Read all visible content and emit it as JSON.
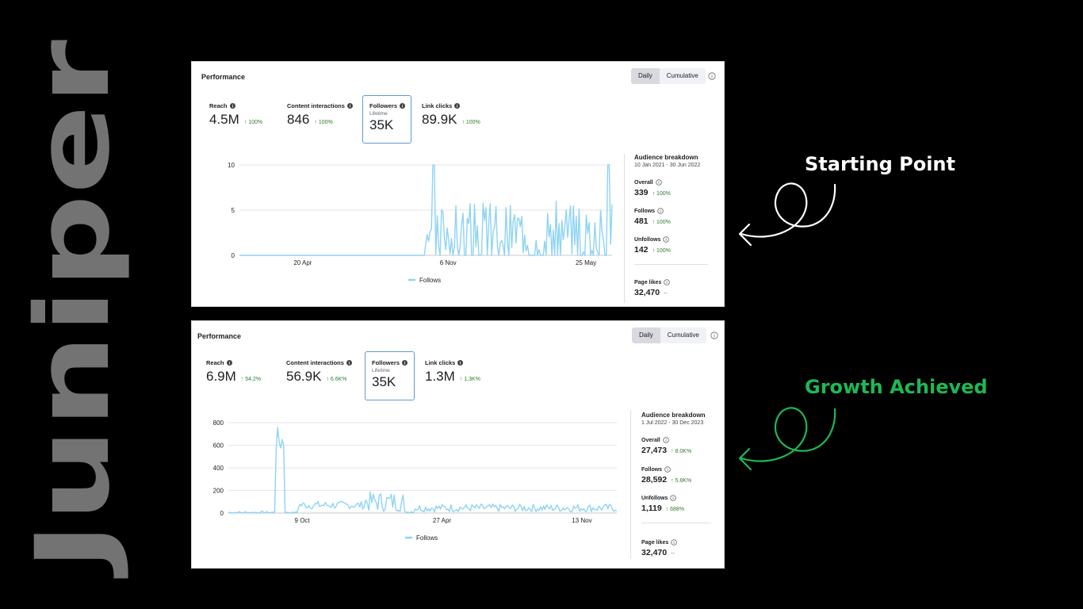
{
  "brand": {
    "text": "Juniper",
    "color": "#737373"
  },
  "panels": [
    {
      "title": "Performance",
      "toggle": [
        "Daily",
        "Cumulative"
      ],
      "metrics": [
        {
          "label": "Reach",
          "value": "4.5M",
          "change": "↑ 100%"
        },
        {
          "label": "Content interactions",
          "value": "846",
          "change": "↑ 100%"
        },
        {
          "label": "Followers",
          "sub": "Lifetime",
          "value": "35K",
          "change": ""
        },
        {
          "label": "Link clicks",
          "value": "89.9K",
          "change": "↑ 100%"
        }
      ],
      "audience": {
        "title": "Audience breakdown",
        "dates": "10 Jan 2021 - 30 Jun 2022",
        "overall_label": "Overall",
        "overall_value": "339",
        "overall_change": "↑ 100%",
        "follows_label": "Follows",
        "follows_value": "481",
        "follows_change": "↑ 100%",
        "unfollows_label": "Unfollows",
        "unfollows_value": "142",
        "unfollows_change": "↑ 100%",
        "likes_label": "Page likes",
        "likes_value": "32,470",
        "likes_change": "--"
      }
    },
    {
      "title": "Performance",
      "toggle": [
        "Daily",
        "Cumulative"
      ],
      "metrics": [
        {
          "label": "Reach",
          "value": "6.9M",
          "change": "↑ 54.2%"
        },
        {
          "label": "Content interactions",
          "value": "56.9K",
          "change": "↑ 6.6K%"
        },
        {
          "label": "Followers",
          "sub": "Lifetime",
          "value": "35K",
          "change": ""
        },
        {
          "label": "Link clicks",
          "value": "1.3M",
          "change": "↑ 1.3K%"
        }
      ],
      "audience": {
        "title": "Audience breakdown",
        "dates": "1 Jul 2022 - 30 Dec 2023",
        "overall_label": "Overall",
        "overall_value": "27,473",
        "overall_change": "↑ 8.0K%",
        "follows_label": "Follows",
        "follows_value": "28,592",
        "follows_change": "↑ 5.8K%",
        "unfollows_label": "Unfollows",
        "unfollows_value": "1,119",
        "unfollows_change": "↑ 688%",
        "likes_label": "Page likes",
        "likes_value": "32,470",
        "likes_change": "--"
      }
    }
  ],
  "callouts": [
    {
      "text": "Starting Point",
      "color": "#ffffff"
    },
    {
      "text": "Growth Achieved",
      "color": "#1db954"
    }
  ],
  "chart_data": [
    {
      "type": "line",
      "legend": "Follows",
      "series_color": "#8ed3f5",
      "yticks": [
        0,
        5,
        10
      ],
      "ylim": [
        0,
        10
      ],
      "xticks": [
        "20 Apr",
        "6 Nov",
        "25 May"
      ],
      "xtick_pos": [
        0.17,
        0.56,
        0.93
      ],
      "x_start": 0.0,
      "x_end": 1.0,
      "baseline_until": 0.5,
      "spikes": [
        [
          0.52,
          10
        ],
        [
          0.99,
          10
        ]
      ],
      "noise_max": 6,
      "seed": 3
    },
    {
      "type": "line",
      "legend": "Follows",
      "series_color": "#8ed3f5",
      "yticks": [
        0,
        200,
        400,
        600,
        800
      ],
      "ylim": [
        0,
        800
      ],
      "xticks": [
        "9 Oct",
        "27 Apr",
        "13 Nov"
      ],
      "xtick_pos": [
        0.19,
        0.55,
        0.91
      ],
      "segments": [
        {
          "from": 0.0,
          "to": 0.12,
          "level": 5,
          "noise": 10
        },
        {
          "from": 0.12,
          "to": 0.145,
          "level": 640,
          "noise": 120
        },
        {
          "from": 0.145,
          "to": 0.18,
          "level": 5,
          "noise": 5
        },
        {
          "from": 0.18,
          "to": 0.35,
          "level": 70,
          "noise": 35
        },
        {
          "from": 0.35,
          "to": 0.45,
          "level": 100,
          "noise": 90
        },
        {
          "from": 0.45,
          "to": 0.48,
          "level": 10,
          "noise": 10
        },
        {
          "from": 0.48,
          "to": 1.0,
          "level": 45,
          "noise": 35
        }
      ],
      "seed": 7
    }
  ]
}
